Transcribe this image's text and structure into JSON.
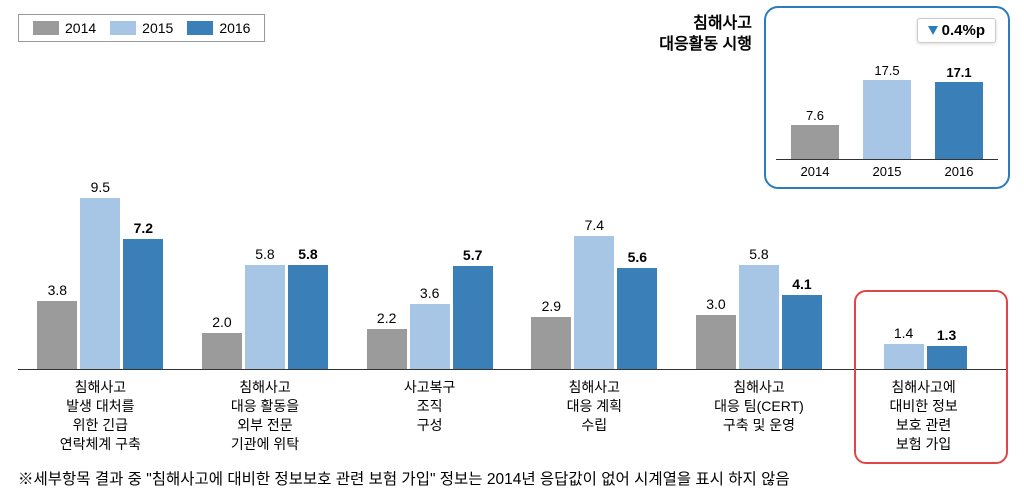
{
  "colors": {
    "y2014": "#9b9b9b",
    "y2015": "#a7c6e6",
    "y2016": "#3a7fb8",
    "text": "#333333"
  },
  "legend": {
    "y2014": "2014",
    "y2015": "2015",
    "y2016": "2016"
  },
  "callout": {
    "title_line1": "침해사고",
    "title_line2": "대응활동 시행",
    "delta": "0.4%p",
    "bars": [
      {
        "year": "2014",
        "value": 7.6,
        "color_key": "y2014",
        "bold": false
      },
      {
        "year": "2015",
        "value": 17.5,
        "color_key": "y2015",
        "bold": false
      },
      {
        "year": "2016",
        "value": 17.1,
        "color_key": "y2016",
        "bold": true
      }
    ],
    "max": 20
  },
  "main": {
    "max": 10,
    "groups": [
      {
        "label": "침해사고\n발생 대처를\n위한 긴급\n연락체계 구축",
        "bars": [
          {
            "value": 3.8,
            "color_key": "y2014",
            "bold": false
          },
          {
            "value": 9.5,
            "color_key": "y2015",
            "bold": false
          },
          {
            "value": 7.2,
            "color_key": "y2016",
            "bold": true
          }
        ]
      },
      {
        "label": "침해사고\n대응 활동을\n외부 전문\n기관에 위탁",
        "bars": [
          {
            "value": 2.0,
            "color_key": "y2014",
            "bold": false
          },
          {
            "value": 5.8,
            "color_key": "y2015",
            "bold": false
          },
          {
            "value": 5.8,
            "color_key": "y2016",
            "bold": true
          }
        ]
      },
      {
        "label": "사고복구\n조직\n구성",
        "bars": [
          {
            "value": 2.2,
            "color_key": "y2014",
            "bold": false
          },
          {
            "value": 3.6,
            "color_key": "y2015",
            "bold": false
          },
          {
            "value": 5.7,
            "color_key": "y2016",
            "bold": true
          }
        ]
      },
      {
        "label": "침해사고\n대응 계획\n수립",
        "bars": [
          {
            "value": 2.9,
            "color_key": "y2014",
            "bold": false
          },
          {
            "value": 7.4,
            "color_key": "y2015",
            "bold": false
          },
          {
            "value": 5.6,
            "color_key": "y2016",
            "bold": true
          }
        ]
      },
      {
        "label": "침해사고\n대응 팀(CERT)\n구축 및 운영",
        "bars": [
          {
            "value": 3.0,
            "color_key": "y2014",
            "bold": false
          },
          {
            "value": 5.8,
            "color_key": "y2015",
            "bold": false
          },
          {
            "value": 4.1,
            "color_key": "y2016",
            "bold": true
          }
        ]
      },
      {
        "label": "침해사고에\n대비한 정보\n보호 관련\n보험 가입",
        "bars": [
          {
            "value": null,
            "color_key": "y2014",
            "bold": false
          },
          {
            "value": 1.4,
            "color_key": "y2015",
            "bold": false
          },
          {
            "value": 1.3,
            "color_key": "y2016",
            "bold": true
          }
        ]
      }
    ]
  },
  "footnote": "※세부항목 결과 중 \"침해사고에 대비한 정보보호 관련 보험 가입\" 정보는 2014년 응답값이 없어 시계열을 표시 하지 않음"
}
